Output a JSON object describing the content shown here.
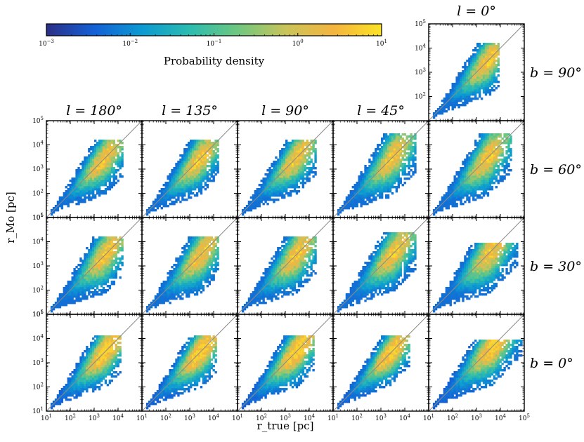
{
  "chart_data": {
    "type": "heatmap",
    "description_layout": "grid of 2D histograms, rows by galactic latitude b, columns by galactic longitude l",
    "xlabel": "r_true [pc]",
    "ylabel": "r_Mo [pc]",
    "x_scale": "log",
    "y_scale": "log",
    "xlim": [
      10,
      100000
    ],
    "ylim": [
      10,
      100000
    ],
    "x_tick_labels": [
      "10^1",
      "10^2",
      "10^3",
      "10^4",
      "10^5"
    ],
    "y_tick_labels": [
      "10^1",
      "10^2",
      "10^3",
      "10^4",
      "10^5"
    ],
    "column_titles": [
      "l = 180°",
      "l = 135°",
      "l = 90°",
      "l = 45°",
      "l = 0°"
    ],
    "row_titles": [
      "b = 90°",
      "b = 60°",
      "b = 30°",
      "b = 0°"
    ],
    "identity_line": true,
    "colorbar": {
      "label": "Probability density",
      "scale": "log",
      "range": [
        0.001,
        10
      ],
      "tick_labels": [
        "10^-3",
        "10^-2",
        "10^-1",
        "10^0",
        "10^1"
      ],
      "colors": [
        "#2b2f86",
        "#1460d6",
        "#0c9ad2",
        "#2cbcb0",
        "#6fc77f",
        "#c9c45a",
        "#f4b43f",
        "#fbe326"
      ]
    },
    "panels": [
      {
        "row": "b = 90°",
        "col": "l = 0°",
        "r_center": 3000,
        "ridge_end": 7000,
        "spread": 0.55,
        "top_cap": 18000,
        "density_peak": 3.0
      },
      {
        "row": "b = 60°",
        "col": "l = 180°",
        "r_center": 2500,
        "ridge_end": 12000,
        "spread": 0.55,
        "top_cap": 15000,
        "density_peak": 4.0
      },
      {
        "row": "b = 60°",
        "col": "l = 135°",
        "r_center": 2500,
        "ridge_end": 12000,
        "spread": 0.55,
        "top_cap": 15000,
        "density_peak": 4.0
      },
      {
        "row": "b = 60°",
        "col": "l = 90°",
        "r_center": 3000,
        "ridge_end": 15000,
        "spread": 0.55,
        "top_cap": 16000,
        "density_peak": 3.5
      },
      {
        "row": "b = 60°",
        "col": "l = 45°",
        "r_center": 3000,
        "ridge_end": 20000,
        "spread": 0.6,
        "top_cap": 30000,
        "density_peak": 3.0
      },
      {
        "row": "b = 60°",
        "col": "l = 0°",
        "r_center": 3000,
        "ridge_end": 20000,
        "spread": 0.6,
        "top_cap": 30000,
        "density_peak": 3.0
      },
      {
        "row": "b = 30°",
        "col": "l = 180°",
        "r_center": 3000,
        "ridge_end": 12000,
        "spread": 0.6,
        "top_cap": 15000,
        "density_peak": 5.0
      },
      {
        "row": "b = 30°",
        "col": "l = 135°",
        "r_center": 3000,
        "ridge_end": 12000,
        "spread": 0.6,
        "top_cap": 15000,
        "density_peak": 5.0
      },
      {
        "row": "b = 30°",
        "col": "l = 90°",
        "r_center": 3000,
        "ridge_end": 15000,
        "spread": 0.6,
        "top_cap": 16000,
        "density_peak": 4.5
      },
      {
        "row": "b = 30°",
        "col": "l = 45°",
        "r_center": 3500,
        "ridge_end": 20000,
        "spread": 0.6,
        "top_cap": 25000,
        "density_peak": 4.0
      },
      {
        "row": "b = 30°",
        "col": "l = 0°",
        "r_center": 4000,
        "ridge_end": 40000,
        "spread": 0.65,
        "top_cap": 9000,
        "density_peak": 3.5
      },
      {
        "row": "b = 0°",
        "col": "l = 180°",
        "r_center": 3000,
        "ridge_end": 10000,
        "spread": 0.55,
        "top_cap": 14000,
        "density_peak": 8.0
      },
      {
        "row": "b = 0°",
        "col": "l = 135°",
        "r_center": 3000,
        "ridge_end": 10000,
        "spread": 0.55,
        "top_cap": 14000,
        "density_peak": 8.0
      },
      {
        "row": "b = 0°",
        "col": "l = 90°",
        "r_center": 3000,
        "ridge_end": 12000,
        "spread": 0.55,
        "top_cap": 14000,
        "density_peak": 7.0
      },
      {
        "row": "b = 0°",
        "col": "l = 45°",
        "r_center": 3000,
        "ridge_end": 12000,
        "spread": 0.5,
        "top_cap": 14000,
        "density_peak": 7.0
      },
      {
        "row": "b = 0°",
        "col": "l = 0°",
        "r_center": 5000,
        "ridge_end": 60000,
        "spread": 0.6,
        "top_cap": 9000,
        "density_peak": 6.0
      }
    ]
  }
}
